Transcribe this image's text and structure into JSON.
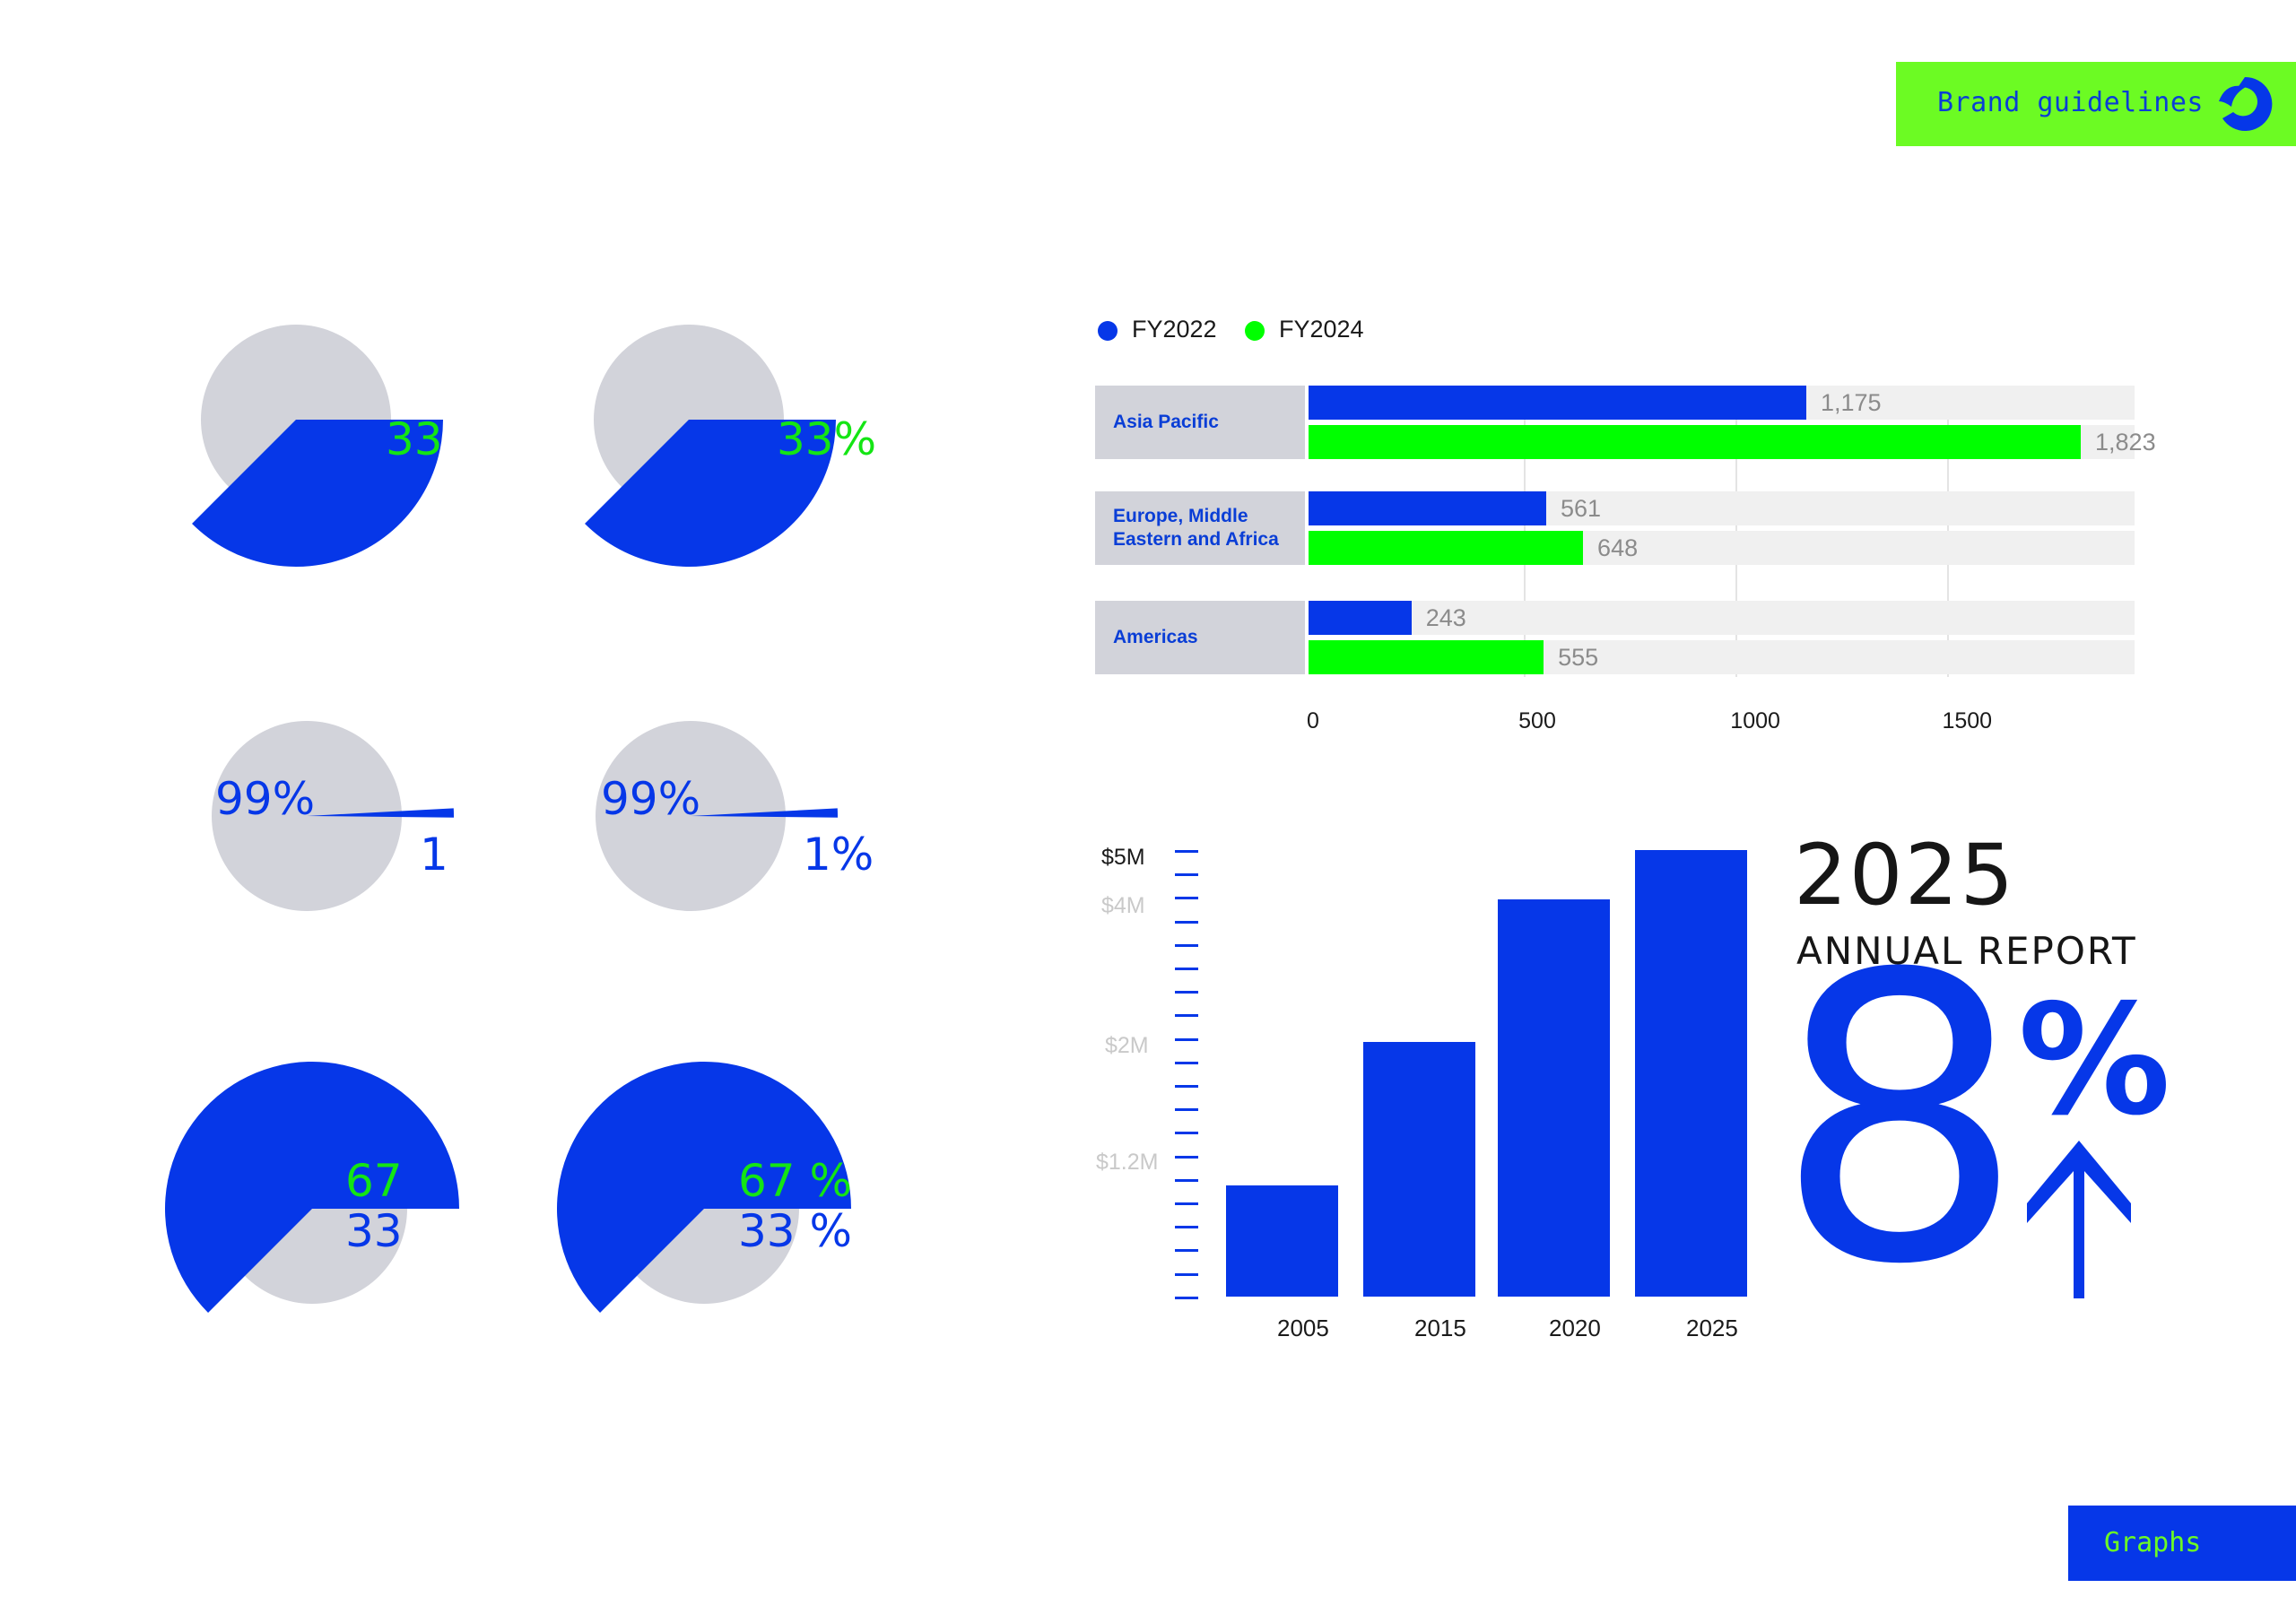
{
  "header": {
    "brand_label": "Brand guidelines",
    "logo_icon": "swirl-logo-icon"
  },
  "footer": {
    "section_label": "Graphs"
  },
  "colors": {
    "blue": "#0637e8",
    "green": "#00ff00",
    "lime": "#6cfb23",
    "grey": "#d2d3da",
    "track": "#f0f0f0"
  },
  "pies": [
    {
      "labels": [
        "33"
      ],
      "label_colors": [
        "green"
      ]
    },
    {
      "labels": [
        "33%"
      ],
      "label_colors": [
        "green"
      ]
    },
    {
      "labels": [
        "99%",
        "1"
      ],
      "label_colors": [
        "blue",
        "blue"
      ]
    },
    {
      "labels": [
        "99%",
        "1%"
      ],
      "label_colors": [
        "blue",
        "blue"
      ]
    },
    {
      "labels": [
        "67",
        "33"
      ],
      "label_colors": [
        "green",
        "blue"
      ]
    },
    {
      "labels": [
        "67 %",
        "33 %"
      ],
      "label_colors": [
        "green",
        "blue"
      ]
    }
  ],
  "chart_data": [
    {
      "type": "pie",
      "slices": [
        {
          "label": "",
          "value": 67
        },
        {
          "label": "33",
          "value": 33
        }
      ]
    },
    {
      "type": "pie",
      "slices": [
        {
          "label": "",
          "value": 67
        },
        {
          "label": "33%",
          "value": 33
        }
      ]
    },
    {
      "type": "pie",
      "slices": [
        {
          "label": "99%",
          "value": 99
        },
        {
          "label": "1",
          "value": 1
        }
      ]
    },
    {
      "type": "pie",
      "slices": [
        {
          "label": "99%",
          "value": 99
        },
        {
          "label": "1%",
          "value": 1
        }
      ]
    },
    {
      "type": "pie",
      "slices": [
        {
          "label": "67",
          "value": 67
        },
        {
          "label": "33",
          "value": 33
        }
      ]
    },
    {
      "type": "pie",
      "slices": [
        {
          "label": "67 %",
          "value": 67
        },
        {
          "label": "33 %",
          "value": 33
        }
      ]
    },
    {
      "type": "bar",
      "orientation": "horizontal",
      "categories": [
        "Asia Pacific",
        "Europe, Middle\nEastern and Africa",
        "Americas"
      ],
      "series": [
        {
          "name": "FY2022",
          "values": [
            1175,
            561,
            243
          ],
          "value_labels": [
            "1,175",
            "561",
            "243"
          ],
          "color": "#0637e8"
        },
        {
          "name": "FY2024",
          "values": [
            1823,
            648,
            555
          ],
          "value_labels": [
            "1,823",
            "648",
            "555"
          ],
          "color": "#00ff00"
        }
      ],
      "xticks": [
        "0",
        "500",
        "1000",
        "1500"
      ],
      "xlim": [
        0,
        1950
      ],
      "legend": "top-left",
      "grid": true
    },
    {
      "type": "bar",
      "orientation": "vertical",
      "categories": [
        "2005",
        "2015",
        "2020",
        "2025"
      ],
      "values": [
        1.2,
        2.2,
        4.3,
        5
      ],
      "yticks": [
        "$5M",
        "$4M",
        "$2M",
        "$1.2M"
      ],
      "ylim": [
        0,
        5
      ],
      "title": "2025",
      "subtitle": "ANNUAL REPORT",
      "highlight": "8",
      "highlight_unit": "%"
    }
  ]
}
